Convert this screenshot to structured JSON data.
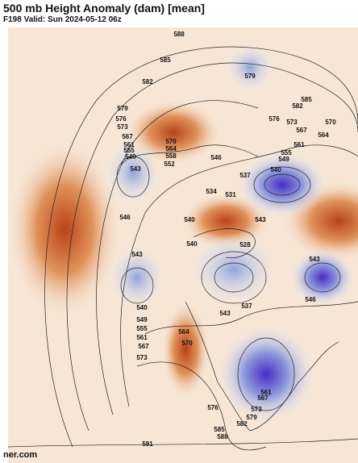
{
  "header": {
    "title": "500 mb Height Anomaly (dam) [mean]",
    "subtitle": "F198 Valid: Sun 2024-05-12 06z"
  },
  "contour_labels": [
    588,
    585,
    582,
    579,
    579,
    576,
    573,
    567,
    561,
    555,
    549,
    543,
    570,
    564,
    558,
    552,
    546,
    537,
    540,
    534,
    531,
    540,
    546,
    540,
    543,
    528,
    543,
    543,
    546,
    585,
    582,
    576,
    573,
    567,
    570,
    564,
    561,
    555,
    549,
    540,
    549,
    555,
    561,
    567,
    573,
    570,
    564,
    543,
    537,
    576,
    573,
    579,
    582,
    585,
    588,
    591,
    561,
    567
  ],
  "watermark": "ner.com"
}
